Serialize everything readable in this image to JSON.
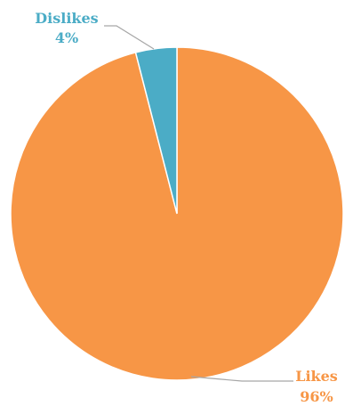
{
  "chart_data": {
    "type": "pie",
    "title": "",
    "slices": [
      {
        "label": "Likes",
        "value": 96,
        "percent_label": "96%",
        "color": "#f79646"
      },
      {
        "label": "Dislikes",
        "value": 4,
        "percent_label": "4%",
        "color": "#4bacc6"
      }
    ],
    "legend": "none",
    "data_labels": "outside-with-leader-lines"
  }
}
